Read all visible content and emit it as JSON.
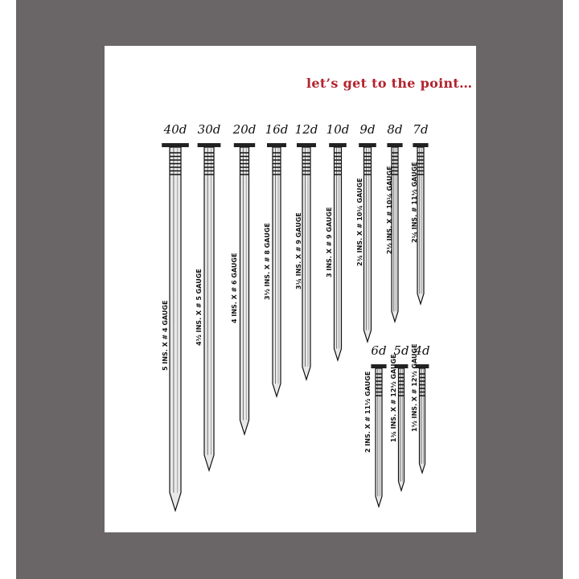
{
  "tagline": "let’s get to the point…",
  "colors": {
    "tagline": "#b3232e",
    "background": "#6a6667",
    "card": "#ffffff"
  },
  "nails": [
    {
      "size": "40d",
      "spec": "5 INS. X # 4 GAUGE"
    },
    {
      "size": "30d",
      "spec": "4½ INS. X # 5 GAUGE"
    },
    {
      "size": "20d",
      "spec": "4 INS. X # 6 GAUGE"
    },
    {
      "size": "16d",
      "spec": "3½ INS. X # 8 GAUGE"
    },
    {
      "size": "12d",
      "spec": "3¼ INS. X # 9 GAUGE"
    },
    {
      "size": "10d",
      "spec": "3 INS. X # 9 GAUGE"
    },
    {
      "size": "9d",
      "spec": "2¾ INS. X # 10¼ GAUGE"
    },
    {
      "size": "8d",
      "spec": "2½ INS. X # 10¼ GAUGE"
    },
    {
      "size": "7d",
      "spec": "2¼ INS. # 11½ GAUGE"
    },
    {
      "size": "6d",
      "spec": "2 INS. X # 11½ GAUGE"
    },
    {
      "size": "5d",
      "spec": "1¾ INS. X # 12½ GAUGE"
    },
    {
      "size": "4d",
      "spec": "1½ INS. X # 12½ GAUGE"
    }
  ]
}
